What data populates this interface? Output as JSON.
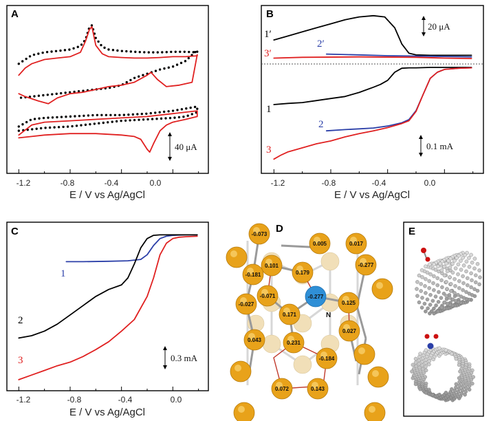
{
  "colors": {
    "black": "#000000",
    "red": "#e02020",
    "blue": "#2b3fa8",
    "gold": "#e8a21a",
    "cream": "#f1dfb8",
    "nitrogen": "#2f8fd6",
    "oxygen": "#cc1111",
    "carbon_gray": "#8f8f8f"
  },
  "panels": {
    "A": {
      "letter": "A",
      "xlabel": "E / V vs Ag/AgCl",
      "ticks": [
        "-1.2",
        "-0.8",
        "-0.4",
        "0.0"
      ],
      "scalebar": "40 μA"
    },
    "B": {
      "letter": "B",
      "xlabel": "E / V vs Ag/AgCl",
      "ticks": [
        "-1.2",
        "-0.8",
        "-0.4",
        "0.0"
      ],
      "scalebar_top": "20 μA",
      "scalebar_bottom": "0.1 mA",
      "labels": {
        "c1p": "1′",
        "c2p": "2′",
        "c3p": "3′",
        "c1": "1",
        "c2": "2",
        "c3": "3"
      }
    },
    "C": {
      "letter": "C",
      "xlabel": "E / V vs Ag/AgCl",
      "ticks": [
        "-1.2",
        "-0.8",
        "-0.4",
        "0.0"
      ],
      "scalebar": "0.3 mA",
      "labels": {
        "c1": "1",
        "c2": "2",
        "c3": "3"
      }
    },
    "D": {
      "letter": "D",
      "n_label": "N",
      "charges": [
        "-0.073",
        "0.005",
        "0.017",
        "0.101",
        "0.179",
        "-0.181",
        "-0.277",
        "-0.071",
        "-0.277",
        "0.125",
        "-0.027",
        "0.171",
        "0.043",
        "0.027",
        "0.231",
        "-0.184",
        "0.072",
        "0.143"
      ]
    },
    "E": {
      "letter": "E"
    }
  },
  "chart_data": [
    {
      "type": "line",
      "panel": "A",
      "title": "",
      "xlabel": "E / V vs Ag/AgCl",
      "ylabel": "",
      "xlim": [
        -1.25,
        0.25
      ],
      "ylim": [
        -3.9,
        1.7
      ],
      "series": [
        {
          "color": "#000000",
          "style": "dotted",
          "x": [
            -1.2,
            -1.1,
            -1.0,
            -0.9,
            -0.8,
            -0.72,
            -0.68,
            -0.65,
            -0.63,
            -0.6,
            -0.55,
            -0.5,
            -0.4,
            -0.3,
            -0.2,
            -0.1,
            0.0,
            0.1,
            0.19,
            0.19,
            0.1,
            0.0,
            -0.1,
            -0.2,
            -0.3,
            -0.4,
            -0.5,
            -0.6,
            -0.7,
            -0.8,
            -0.9,
            -1.0,
            -1.1,
            -1.2
          ],
          "y": [
            -0.2,
            0.1,
            0.2,
            0.25,
            0.3,
            0.42,
            0.65,
            1.08,
            1.15,
            0.7,
            0.4,
            0.3,
            0.25,
            0.22,
            0.2,
            0.2,
            0.22,
            0.22,
            0.2,
            0.28,
            -0.1,
            -0.3,
            -0.4,
            -0.55,
            -0.7,
            -0.95,
            -1.05,
            -1.1,
            -1.15,
            -1.2,
            -1.25,
            -1.3,
            -1.35,
            -1.4
          ]
        },
        {
          "color": "#e02020",
          "style": "solid",
          "x": [
            -1.2,
            -1.15,
            -1.1,
            -1.0,
            -0.9,
            -0.8,
            -0.72,
            -0.68,
            -0.65,
            -0.63,
            -0.6,
            -0.55,
            -0.5,
            -0.4,
            -0.3,
            -0.2,
            -0.1,
            0.0,
            0.1,
            0.19,
            0.19,
            0.15,
            0.05,
            -0.05,
            -0.12,
            -0.17,
            -0.2,
            -0.3,
            -0.4,
            -0.5,
            -0.6,
            -0.7,
            -0.8,
            -0.9,
            -0.97,
            -1.05,
            -1.15,
            -1.2
          ],
          "y": [
            -0.6,
            -0.35,
            -0.2,
            -0.05,
            0.0,
            0.05,
            0.2,
            0.6,
            1.0,
            1.1,
            0.45,
            0.15,
            0.05,
            0.02,
            0.0,
            0.0,
            0.02,
            0.05,
            0.05,
            0.08,
            0.12,
            -0.85,
            -0.95,
            -1.0,
            -0.75,
            -0.5,
            -0.6,
            -0.85,
            -0.95,
            -1.0,
            -1.1,
            -1.2,
            -1.25,
            -1.4,
            -1.6,
            -1.5,
            -1.35,
            -1.25
          ]
        },
        {
          "color": "#000000",
          "style": "dotted",
          "x": [
            -1.2,
            -1.1,
            -1.0,
            -0.8,
            -0.6,
            -0.4,
            -0.2,
            0.0,
            0.19,
            0.19,
            0.1,
            0.0,
            -0.2,
            -0.4,
            -0.6,
            -0.8,
            -1.0,
            -1.1,
            -1.2
          ],
          "y": [
            -2.4,
            -2.15,
            -2.1,
            -2.05,
            -2.0,
            -2.0,
            -1.95,
            -1.85,
            -1.7,
            -1.9,
            -2.05,
            -2.1,
            -2.15,
            -2.2,
            -2.3,
            -2.4,
            -2.45,
            -2.5,
            -2.55
          ]
        },
        {
          "color": "#e02020",
          "style": "solid",
          "x": [
            -1.2,
            -1.1,
            -1.0,
            -0.8,
            -0.6,
            -0.4,
            -0.2,
            0.0,
            0.19,
            0.19,
            0.1,
            0.0,
            -0.05,
            -0.1,
            -0.15,
            -0.18,
            -0.2,
            -0.25,
            -0.3,
            -0.4,
            -0.6,
            -0.8,
            -1.0,
            -1.1,
            -1.2
          ],
          "y": [
            -2.7,
            -2.35,
            -2.25,
            -2.2,
            -2.15,
            -2.1,
            -2.05,
            -1.95,
            -1.85,
            -2.05,
            -2.15,
            -2.25,
            -2.35,
            -2.55,
            -3.0,
            -3.3,
            -3.2,
            -2.85,
            -2.75,
            -2.7,
            -2.65,
            -2.65,
            -2.7,
            -2.75,
            -2.8
          ]
        }
      ]
    },
    {
      "type": "line",
      "panel": "B",
      "title": "",
      "xlabel": "E / V vs Ag/AgCl",
      "ylabel": "",
      "xlim": [
        -1.25,
        0.25
      ],
      "ylim": [
        -2.05,
        1.9
      ],
      "series": [
        {
          "name": "1′",
          "color": "#000000",
          "x": [
            -1.2,
            -1.1,
            -1.0,
            -0.9,
            -0.8,
            -0.7,
            -0.6,
            -0.5,
            -0.42,
            -0.35,
            -0.3,
            -0.25,
            -0.2,
            -0.1,
            0.0,
            0.1,
            0.19
          ],
          "y": [
            1.15,
            1.25,
            1.35,
            1.45,
            1.55,
            1.65,
            1.72,
            1.75,
            1.72,
            1.45,
            1.05,
            0.82,
            0.78,
            0.77,
            0.77,
            0.77,
            0.77
          ]
        },
        {
          "name": "2′",
          "color": "#2b3fa8",
          "x": [
            -0.83,
            -0.6,
            -0.4,
            -0.2,
            0.0,
            0.19
          ],
          "y": [
            0.8,
            0.78,
            0.76,
            0.75,
            0.74,
            0.73
          ]
        },
        {
          "name": "3′",
          "color": "#e02020",
          "x": [
            -1.2,
            -1.0,
            -0.6,
            -0.2,
            0.0,
            0.19
          ],
          "y": [
            0.7,
            0.72,
            0.73,
            0.72,
            0.7,
            0.69
          ]
        },
        {
          "name": "1",
          "color": "#000000",
          "x": [
            -1.2,
            -1.1,
            -1.0,
            -0.9,
            -0.8,
            -0.7,
            -0.6,
            -0.5,
            -0.45,
            -0.4,
            -0.35,
            -0.3,
            -0.25,
            -0.2,
            -0.1,
            0.0,
            0.1,
            0.19
          ],
          "y": [
            -0.45,
            -0.42,
            -0.4,
            -0.35,
            -0.3,
            -0.25,
            -0.15,
            -0.02,
            0.05,
            0.15,
            0.35,
            0.45,
            0.46,
            0.46,
            0.47,
            0.47,
            0.47,
            0.47
          ]
        },
        {
          "name": "2",
          "color": "#2b3fa8",
          "x": [
            -0.83,
            -0.7,
            -0.6,
            -0.5,
            -0.4,
            -0.3,
            -0.25,
            -0.2,
            -0.15,
            -0.1,
            -0.05,
            0.0,
            0.1,
            0.19
          ],
          "y": [
            -1.1,
            -1.07,
            -1.05,
            -1.03,
            -0.98,
            -0.9,
            -0.82,
            -0.6,
            -0.2,
            0.2,
            0.35,
            0.42,
            0.45,
            0.46
          ]
        },
        {
          "name": "3",
          "color": "#e02020",
          "x": [
            -1.2,
            -1.15,
            -1.1,
            -1.0,
            -0.9,
            -0.8,
            -0.7,
            -0.6,
            -0.5,
            -0.4,
            -0.3,
            -0.25,
            -0.2,
            -0.15,
            -0.1,
            -0.05,
            0.0,
            0.1,
            0.19
          ],
          "y": [
            -1.8,
            -1.7,
            -1.62,
            -1.52,
            -1.42,
            -1.35,
            -1.25,
            -1.17,
            -1.1,
            -1.02,
            -0.92,
            -0.85,
            -0.62,
            -0.2,
            0.2,
            0.35,
            0.42,
            0.45,
            0.46
          ]
        }
      ]
    },
    {
      "type": "line",
      "panel": "C",
      "title": "",
      "xlabel": "E / V vs Ag/AgCl",
      "ylabel": "",
      "xlim": [
        -1.25,
        0.25
      ],
      "ylim": [
        -2.25,
        1.2
      ],
      "series": [
        {
          "name": "1",
          "color": "#2b3fa8",
          "x": [
            -0.83,
            -0.7,
            -0.5,
            -0.35,
            -0.25,
            -0.2,
            -0.15,
            -0.1,
            -0.05,
            0.0,
            0.1,
            0.19
          ],
          "y": [
            0.45,
            0.45,
            0.46,
            0.47,
            0.5,
            0.6,
            0.8,
            0.95,
            1.0,
            1.02,
            1.03,
            1.03
          ]
        },
        {
          "name": "2",
          "color": "#000000",
          "x": [
            -1.2,
            -1.1,
            -1.0,
            -0.9,
            -0.8,
            -0.7,
            -0.6,
            -0.5,
            -0.4,
            -0.35,
            -0.3,
            -0.25,
            -0.2,
            -0.15,
            -0.1,
            0.0,
            0.1,
            0.19
          ],
          "y": [
            -1.2,
            -1.15,
            -1.05,
            -0.9,
            -0.7,
            -0.5,
            -0.3,
            -0.15,
            -0.05,
            0.1,
            0.4,
            0.75,
            0.95,
            1.02,
            1.03,
            1.03,
            1.03,
            1.03
          ]
        },
        {
          "name": "3",
          "color": "#e02020",
          "x": [
            -1.2,
            -1.1,
            -1.0,
            -0.9,
            -0.8,
            -0.7,
            -0.6,
            -0.5,
            -0.4,
            -0.3,
            -0.2,
            -0.15,
            -0.1,
            -0.05,
            0.0,
            0.05,
            0.1,
            0.19
          ],
          "y": [
            -2.1,
            -2.0,
            -1.9,
            -1.8,
            -1.72,
            -1.6,
            -1.45,
            -1.28,
            -1.05,
            -0.8,
            -0.3,
            0.1,
            0.6,
            0.85,
            0.95,
            0.98,
            0.99,
            1.0
          ]
        }
      ]
    }
  ]
}
